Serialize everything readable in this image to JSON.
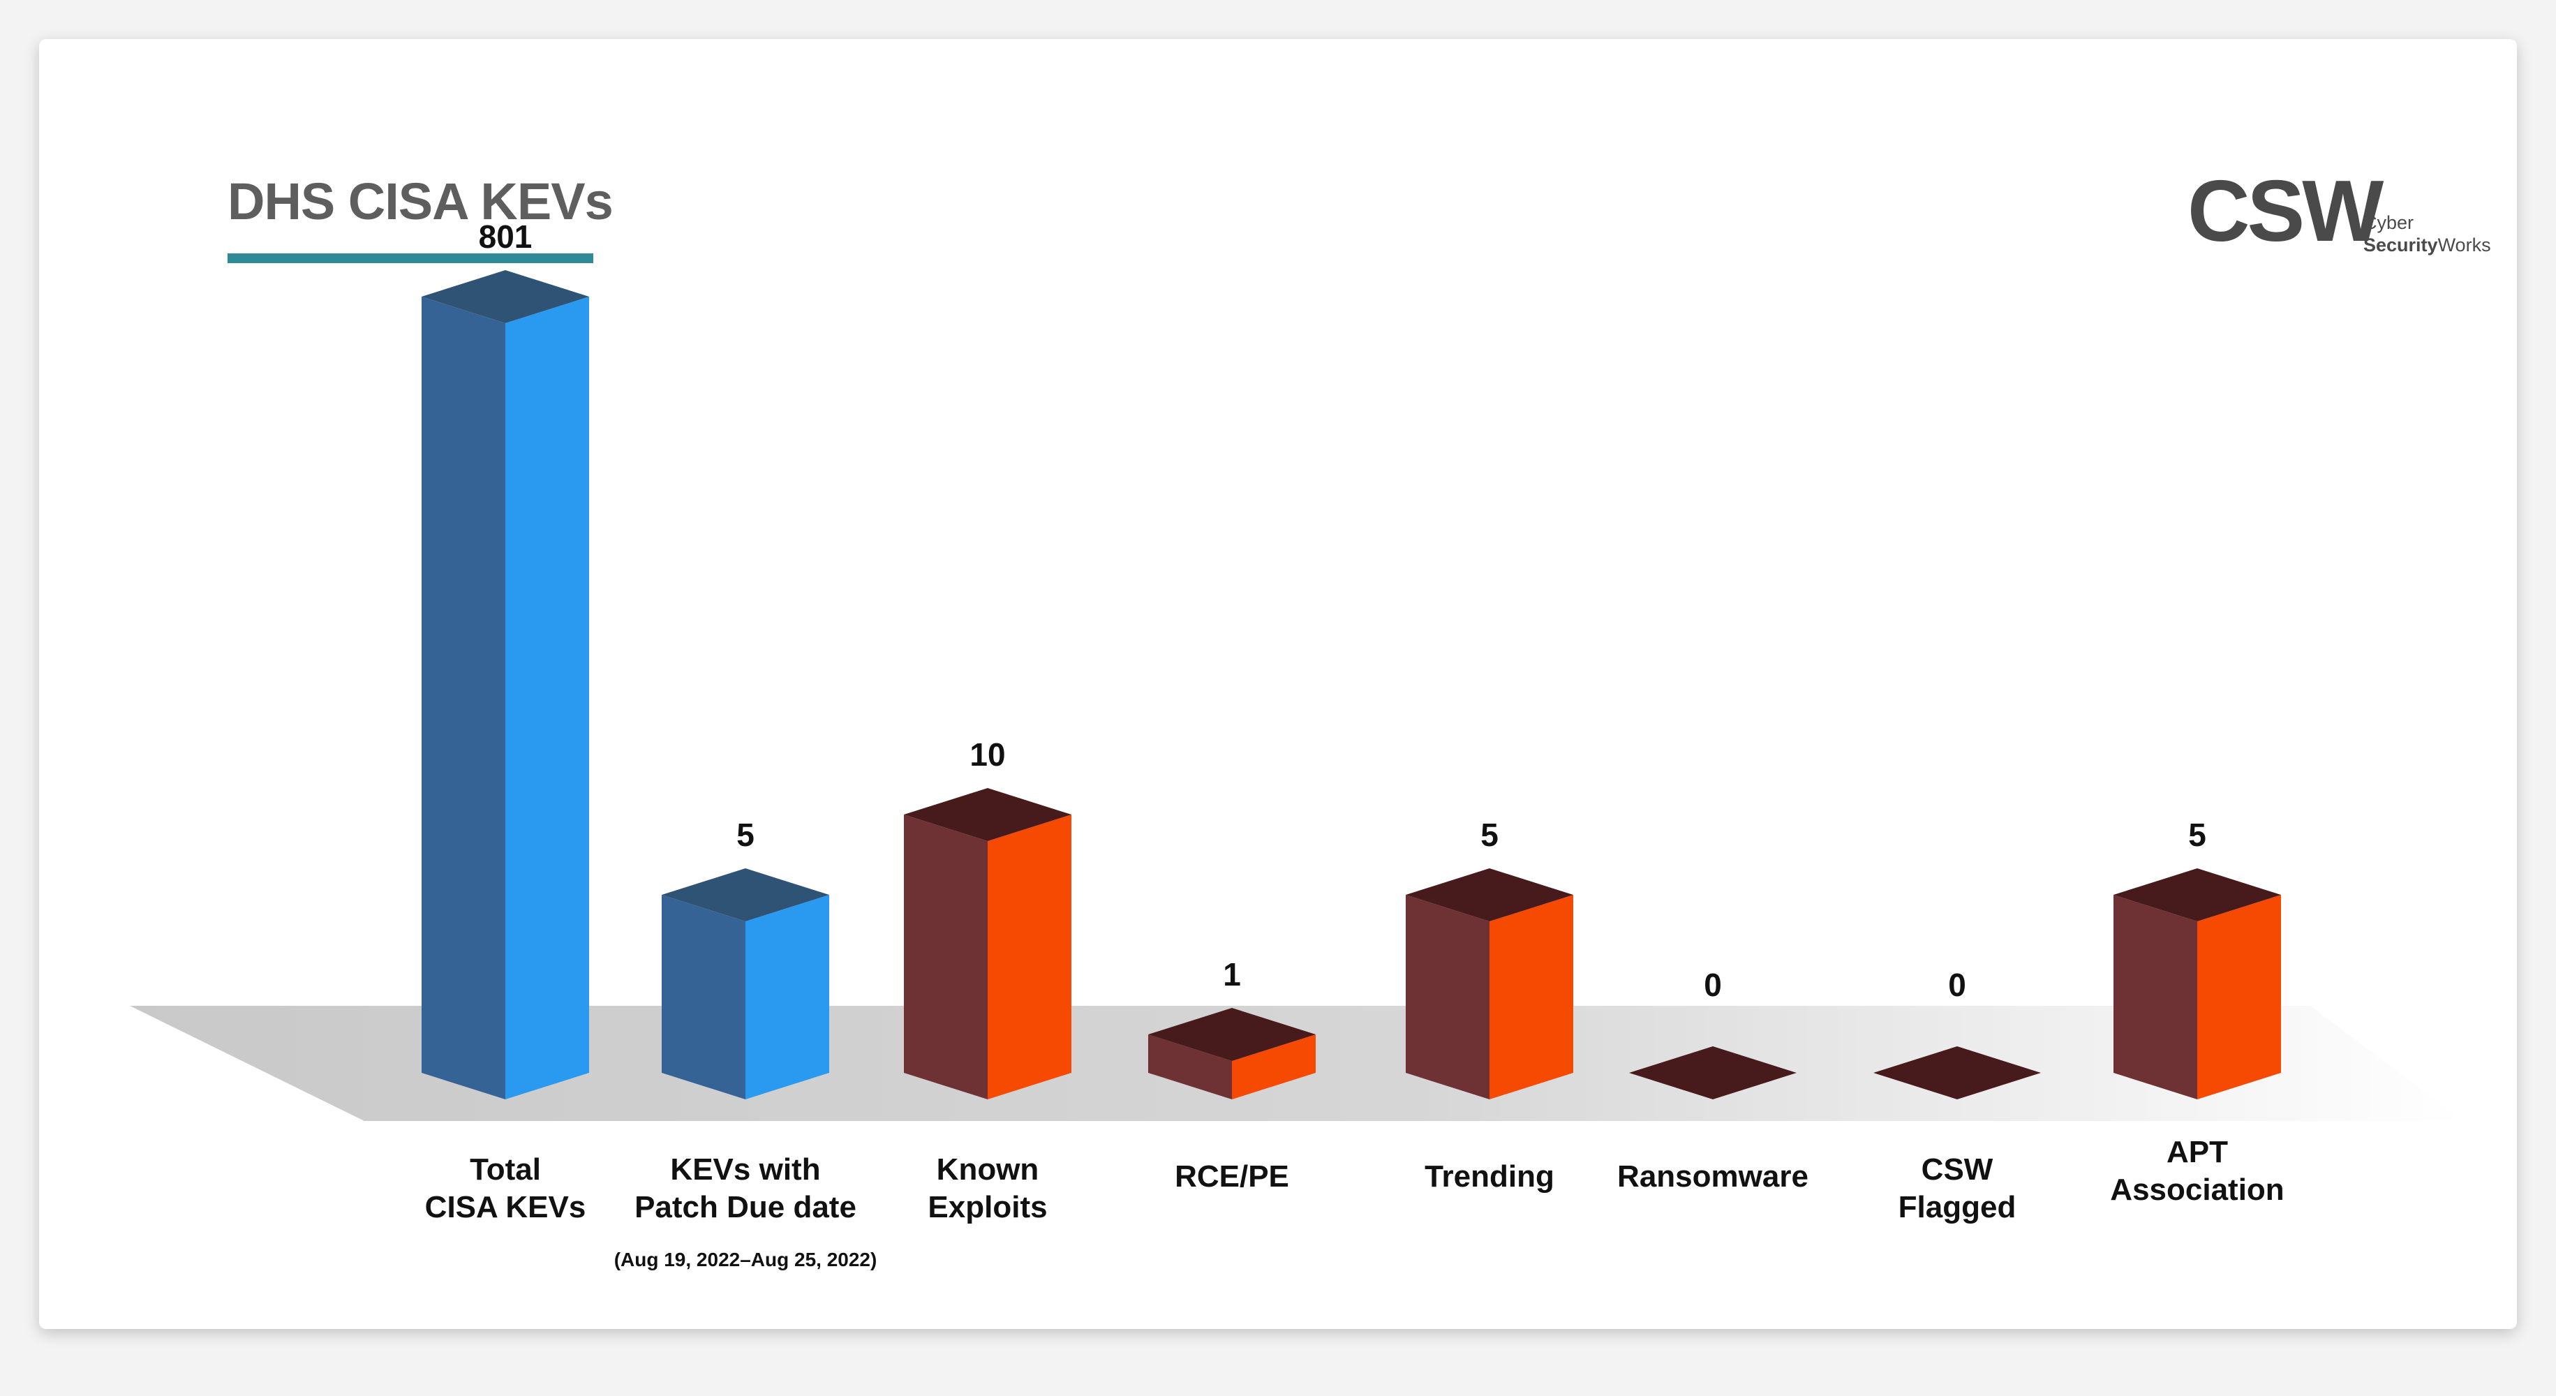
{
  "header": {
    "title": "DHS CISA KEVs"
  },
  "logo": {
    "mark": "CSW",
    "line1": "Cyber",
    "line2_bold": "Security",
    "line2_regular": "Works"
  },
  "colors": {
    "title_underline": "#2e8a97",
    "blue_front": "#2a9af0",
    "blue_side": "#356396",
    "blue_top": "#2f5375",
    "orange_front": "#f64a02",
    "orange_side": "#6e3234",
    "orange_top": "#471a1c",
    "floor_start": "#c9c9c9",
    "floor_end": "#ffffff"
  },
  "chart_data": {
    "type": "bar",
    "title": "DHS CISA KEVs",
    "xlabel": "",
    "ylabel": "",
    "categories": [
      [
        "Total",
        "CISA KEVs"
      ],
      [
        "KEVs with",
        "Patch Due date"
      ],
      [
        "Known",
        "Exploits"
      ],
      [
        "RCE/PE"
      ],
      [
        "Trending"
      ],
      [
        "Ransomware"
      ],
      [
        "CSW",
        "Flagged"
      ],
      [
        "APT",
        "Association"
      ]
    ],
    "category_sublabels": [
      "",
      "(Aug 19, 2022–Aug 25, 2022)",
      "",
      "",
      "",
      "",
      "",
      ""
    ],
    "values": [
      801,
      5,
      10,
      1,
      5,
      0,
      0,
      5
    ],
    "value_labels": [
      "801",
      "5",
      "10",
      "1",
      "5",
      "0",
      "0",
      "5"
    ],
    "bar_color_group": [
      "blue",
      "blue",
      "orange",
      "orange",
      "orange",
      "orange",
      "orange",
      "orange"
    ],
    "style": "3d-isometric-columns",
    "grid": false,
    "legend": "none"
  }
}
